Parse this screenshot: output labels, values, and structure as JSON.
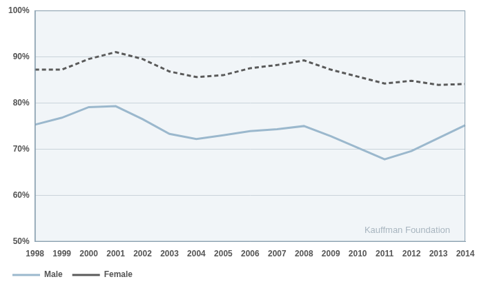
{
  "chart_data": {
    "type": "line",
    "categories": [
      "1998",
      "1999",
      "2000",
      "2001",
      "2002",
      "2003",
      "2004",
      "2005",
      "2006",
      "2007",
      "2008",
      "2009",
      "2010",
      "2011",
      "2012",
      "2013",
      "2014"
    ],
    "series": [
      {
        "name": "Male",
        "color": "#9bb8cd",
        "line_style": "solid",
        "values": [
          75.3,
          76.8,
          79.1,
          79.3,
          76.5,
          73.3,
          72.2,
          73.0,
          73.9,
          74.3,
          75.0,
          72.8,
          70.3,
          67.8,
          69.6,
          72.4,
          75.2
        ]
      },
      {
        "name": "Female",
        "color": "#5a5a5a",
        "line_style": "dashed",
        "values": [
          87.2,
          87.2,
          89.5,
          91.0,
          89.5,
          86.8,
          85.6,
          86.0,
          87.5,
          88.2,
          89.2,
          87.2,
          85.7,
          84.2,
          84.8,
          83.9,
          84.1
        ]
      }
    ],
    "ylim": [
      50,
      100
    ],
    "yticks": [
      {
        "value": 50,
        "label": "50%"
      },
      {
        "value": 60,
        "label": "60%"
      },
      {
        "value": 70,
        "label": "70%"
      },
      {
        "value": 80,
        "label": "80%"
      },
      {
        "value": 90,
        "label": "90%"
      },
      {
        "value": 100,
        "label": "100%"
      }
    ],
    "grid": true,
    "legend": "bottom",
    "annotation": "Kauffman Foundation"
  }
}
